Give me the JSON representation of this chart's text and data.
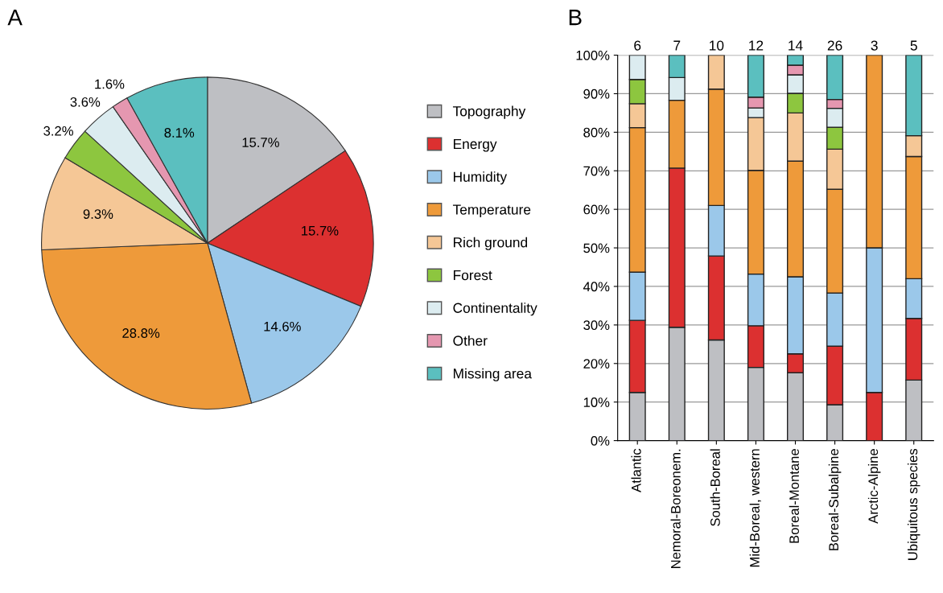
{
  "chart_data": [
    {
      "type": "pie",
      "title": "A",
      "categories": [
        "Topography",
        "Energy",
        "Humidity",
        "Temperature",
        "Rich ground",
        "Forest",
        "Continentality",
        "Other",
        "Missing area"
      ],
      "values": [
        15.7,
        15.7,
        14.6,
        28.8,
        9.3,
        3.2,
        3.6,
        1.6,
        8.1
      ],
      "value_labels": [
        "15.7%",
        "15.7%",
        "14.6%",
        "28.8%",
        "9.3%",
        "3.2%",
        "3.6%",
        "1.6%",
        "8.1%"
      ],
      "colors": [
        "#bebfc3",
        "#dc3030",
        "#9bc8ea",
        "#ee9a3a",
        "#f5c796",
        "#8dc63f",
        "#dcecf0",
        "#e597b0",
        "#5bbfbf"
      ],
      "legend": "right"
    },
    {
      "type": "bar",
      "title": "B",
      "stacked": true,
      "grid": "y",
      "categories": [
        "Atlantic",
        "Nemoral-Boreonem.",
        "South-Boreal",
        "Mid-Boreal, western",
        "Boreal-Montane",
        "Boreal-Subalpine",
        "Arctic-Alpine",
        "Ubiquitous species"
      ],
      "annotations": [
        "6",
        "7",
        "10",
        "12",
        "14",
        "26",
        "3",
        "5"
      ],
      "ylim": [
        0,
        100
      ],
      "yticks": [
        {
          "value": 0,
          "label": "0%"
        },
        {
          "value": 10,
          "label": "10%"
        },
        {
          "value": 20,
          "label": "20%"
        },
        {
          "value": 30,
          "label": "30%"
        },
        {
          "value": 40,
          "label": "40%"
        },
        {
          "value": 50,
          "label": "50%"
        },
        {
          "value": 60,
          "label": "60%"
        },
        {
          "value": 70,
          "label": "70%"
        },
        {
          "value": 80,
          "label": "80%"
        },
        {
          "value": 90,
          "label": "90%"
        },
        {
          "value": 100,
          "label": "100%"
        }
      ],
      "series": [
        {
          "color": "#bebfc3",
          "values": [
            12.5,
            29.4,
            26.1,
            19.0,
            17.6,
            9.3,
            null,
            15.7
          ]
        },
        {
          "color": "#dc3030",
          "values": [
            18.7,
            41.3,
            21.8,
            10.8,
            4.9,
            15.2,
            12.5,
            16.0
          ]
        },
        {
          "color": "#9bc8ea",
          "values": [
            12.5,
            null,
            13.1,
            13.4,
            20.0,
            13.8,
            37.5,
            10.3
          ]
        },
        {
          "color": "#ee9a3a",
          "values": [
            37.5,
            17.6,
            30.2,
            26.9,
            30.0,
            26.9,
            50.0,
            31.7
          ]
        },
        {
          "color": "#f5c796",
          "values": [
            6.2,
            null,
            8.8,
            13.7,
            12.5,
            10.4,
            null,
            5.4
          ]
        },
        {
          "color": "#8dc63f",
          "values": [
            6.3,
            null,
            null,
            null,
            5.1,
            5.7,
            null,
            null
          ]
        },
        {
          "color": "#dcecf0",
          "values": [
            6.3,
            5.9,
            null,
            2.5,
            4.8,
            4.9,
            null,
            null
          ]
        },
        {
          "color": "#e597b0",
          "values": [
            null,
            null,
            null,
            2.8,
            2.5,
            2.3,
            null,
            null
          ]
        },
        {
          "color": "#5bbfbf",
          "values": [
            null,
            5.8,
            null,
            10.9,
            2.6,
            11.5,
            null,
            20.9
          ]
        }
      ]
    }
  ]
}
